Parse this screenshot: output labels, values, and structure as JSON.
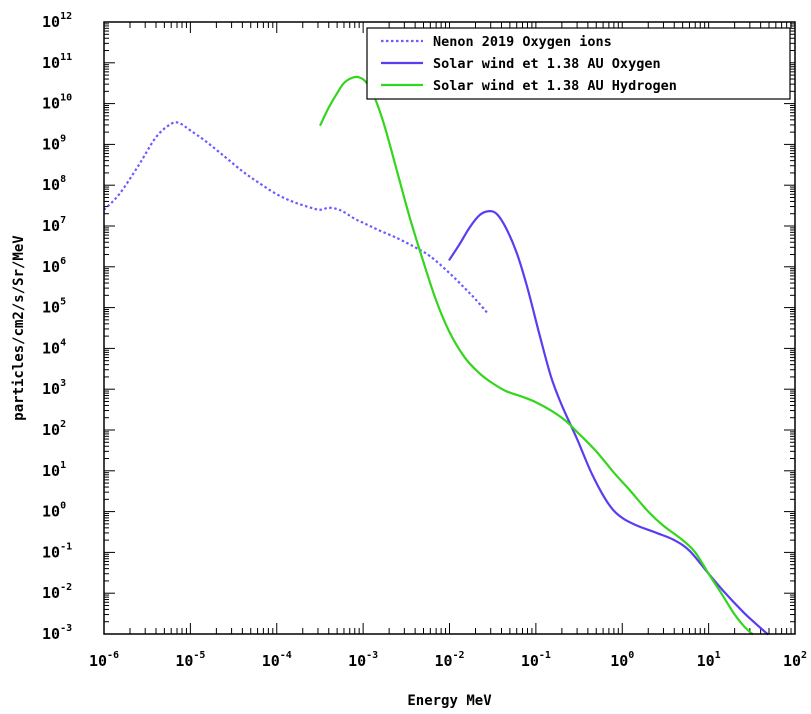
{
  "chart_data": {
    "type": "line",
    "xlabel": "Energy MeV",
    "ylabel": "particles/cm2/s/Sr/MeV",
    "xscale": "log",
    "yscale": "log",
    "xlim": [
      1e-06,
      100
    ],
    "ylim": [
      0.001,
      1000000000000.0
    ],
    "x_tick_labels": [
      {
        "base": "10",
        "exp": "-6"
      },
      {
        "base": "10",
        "exp": "-5"
      },
      {
        "base": "10",
        "exp": "-4"
      },
      {
        "base": "10",
        "exp": "-3"
      },
      {
        "base": "10",
        "exp": "-2"
      },
      {
        "base": "10",
        "exp": "-1"
      },
      {
        "base": "10",
        "exp": "0"
      },
      {
        "base": "10",
        "exp": "1"
      },
      {
        "base": "10",
        "exp": "2"
      }
    ],
    "y_tick_labels": [
      {
        "base": "10",
        "exp": "-3"
      },
      {
        "base": "10",
        "exp": "-2"
      },
      {
        "base": "10",
        "exp": "-1"
      },
      {
        "base": "10",
        "exp": "0"
      },
      {
        "base": "10",
        "exp": "1"
      },
      {
        "base": "10",
        "exp": "2"
      },
      {
        "base": "10",
        "exp": "3"
      },
      {
        "base": "10",
        "exp": "4"
      },
      {
        "base": "10",
        "exp": "5"
      },
      {
        "base": "10",
        "exp": "6"
      },
      {
        "base": "10",
        "exp": "7"
      },
      {
        "base": "10",
        "exp": "8"
      },
      {
        "base": "10",
        "exp": "9"
      },
      {
        "base": "10",
        "exp": "10"
      },
      {
        "base": "10",
        "exp": "11"
      },
      {
        "base": "10",
        "exp": "12"
      }
    ],
    "grid": false,
    "legend_position": "top-right",
    "series": [
      {
        "name": "Nenon 2019 Oxygen ions",
        "color": "#6a5cff",
        "style": "dotted",
        "x": [
          1e-06,
          1.5e-06,
          2.5e-06,
          4e-06,
          6e-06,
          7.5e-06,
          1e-05,
          1.5e-05,
          2.5e-05,
          4e-05,
          6e-05,
          0.0001,
          0.00016,
          0.00025,
          0.00032,
          0.0004,
          0.0005,
          0.0006,
          0.0008,
          0.001,
          0.0015,
          0.0025,
          0.004,
          0.006,
          0.01,
          0.015,
          0.02,
          0.028
        ],
        "y": [
          25000000.0,
          60000000.0,
          300000000.0,
          1500000000.0,
          3200000000.0,
          3300000000.0,
          2200000000.0,
          1200000000.0,
          500000000.0,
          220000000.0,
          120000000.0,
          60000000.0,
          38000000.0,
          28000000.0,
          25000000.0,
          28000000.0,
          26000000.0,
          22000000.0,
          15000000.0,
          12000000.0,
          8000000.0,
          5000000.0,
          3000000.0,
          1800000.0,
          700000.0,
          300000.0,
          160000.0,
          70000.0
        ]
      },
      {
        "name": "Solar wind et 1.38 AU Oxygen",
        "color": "#5b3cf2",
        "style": "solid",
        "x": [
          0.01,
          0.013,
          0.017,
          0.022,
          0.028,
          0.035,
          0.045,
          0.06,
          0.08,
          0.11,
          0.15,
          0.2,
          0.3,
          0.45,
          0.7,
          1,
          1.5,
          2.5,
          4,
          6,
          10,
          15,
          25,
          35,
          48
        ],
        "y": [
          1500000.0,
          3500000.0,
          9000000.0,
          18000000.0,
          23000000.0,
          20000000.0,
          9000000.0,
          2200000.0,
          300000.0,
          22000.0,
          2000.0,
          400,
          60,
          8,
          1.5,
          0.7,
          0.45,
          0.3,
          0.2,
          0.11,
          0.03,
          0.011,
          0.0035,
          0.0018,
          0.001
        ]
      },
      {
        "name": "Solar wind et 1.38 AU Hydrogen",
        "color": "#33d61c",
        "style": "solid",
        "x": [
          0.00032,
          0.0004,
          0.0005,
          0.0006,
          0.00075,
          0.0009,
          0.0011,
          0.0014,
          0.0018,
          0.0025,
          0.0035,
          0.005,
          0.007,
          0.01,
          0.015,
          0.022,
          0.03,
          0.045,
          0.07,
          0.1,
          0.15,
          0.22,
          0.3,
          0.5,
          0.8,
          1.2,
          2,
          3,
          5,
          7,
          10,
          14,
          20,
          26,
          32
        ],
        "y": [
          3000000000.0,
          8000000000.0,
          18000000000.0,
          32000000000.0,
          43000000000.0,
          44000000000.0,
          32000000000.0,
          12000000000.0,
          2500000000.0,
          200000000.0,
          15000000.0,
          1300000.0,
          150000.0,
          25000.0,
          6000.0,
          2500.0,
          1500.0,
          900,
          650,
          480,
          300,
          170,
          90,
          30,
          9,
          3.5,
          1,
          0.45,
          0.2,
          0.1,
          0.03,
          0.01,
          0.003,
          0.0015,
          0.001
        ]
      }
    ]
  }
}
